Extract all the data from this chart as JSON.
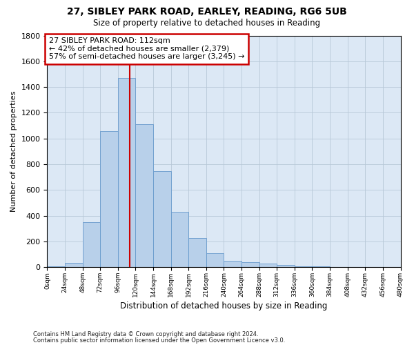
{
  "title1": "27, SIBLEY PARK ROAD, EARLEY, READING, RG6 5UB",
  "title2": "Size of property relative to detached houses in Reading",
  "xlabel": "Distribution of detached houses by size in Reading",
  "ylabel": "Number of detached properties",
  "bar_values": [
    10,
    35,
    350,
    1060,
    1470,
    1110,
    745,
    430,
    225,
    110,
    50,
    40,
    28,
    20,
    10,
    5,
    3,
    2,
    1,
    1
  ],
  "bin_edges": [
    0,
    24,
    48,
    72,
    96,
    120,
    144,
    168,
    192,
    216,
    240,
    264,
    288,
    312,
    336,
    360,
    384,
    408,
    432,
    456,
    480
  ],
  "bar_color": "#b8d0ea",
  "bar_edge_color": "#6699cc",
  "property_size": 112,
  "vline_color": "#cc0000",
  "annotation_line1": "27 SIBLEY PARK ROAD: 112sqm",
  "annotation_line2": "← 42% of detached houses are smaller (2,379)",
  "annotation_line3": "57% of semi-detached houses are larger (3,245) →",
  "annotation_box_edgecolor": "#cc0000",
  "footnote1": "Contains HM Land Registry data © Crown copyright and database right 2024.",
  "footnote2": "Contains public sector information licensed under the Open Government Licence v3.0.",
  "ylim_max": 1800,
  "xlim_max": 480,
  "bg_color": "#dce8f5",
  "grid_color": "#b8c8d8",
  "yticks": [
    0,
    200,
    400,
    600,
    800,
    1000,
    1200,
    1400,
    1600,
    1800
  ]
}
